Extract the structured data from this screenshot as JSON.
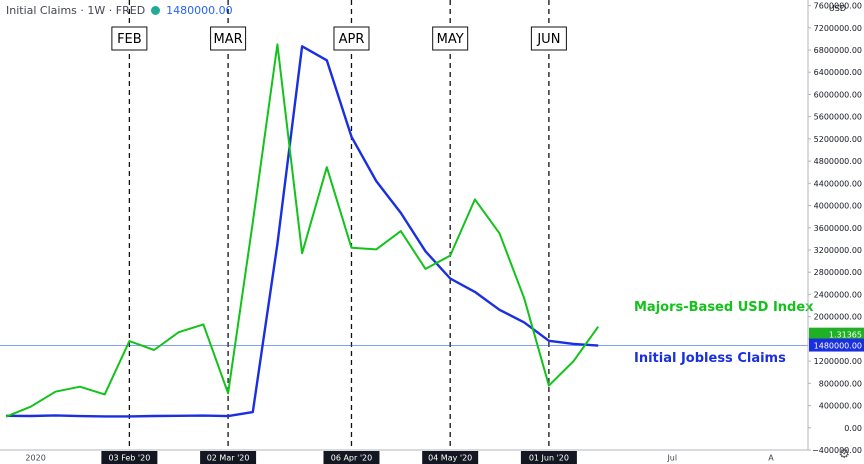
{
  "header": {
    "symbol": "Initial Claims · 1W · FRED",
    "value": "1480000.00"
  },
  "colors": {
    "claims": "#1a2fe0",
    "usd": "#13c21a",
    "current_line": "#2962ff",
    "usd_badge": "#1fb025",
    "claims_badge": "#1a2fe0"
  },
  "chart_data": {
    "type": "line",
    "title": "",
    "x_unit": "weeks",
    "y_axis": {
      "unit": "USD",
      "ylim": [
        -400000,
        7700000
      ],
      "ticks": [
        -400000,
        0,
        400000,
        800000,
        1200000,
        1600000,
        2000000,
        2400000,
        2800000,
        3200000,
        3600000,
        4000000,
        4400000,
        4800000,
        5200000,
        5600000,
        6000000,
        6400000,
        6800000,
        7200000,
        7600000
      ],
      "tick_labels": [
        "−400000.00",
        "0.00",
        "400000.00",
        "800000.00",
        "1200000.00",
        "1600000.00",
        "2000000.00",
        "2400000.00",
        "2800000.00",
        "3200000.00",
        "3600000.00",
        "4000000.00",
        "4400000.00",
        "4800000.00",
        "5200000.00",
        "5600000.00",
        "6000000.00",
        "6400000.00",
        "6800000.00",
        "7200000.00",
        "7600000.00"
      ]
    },
    "x_axis": {
      "xlim": [
        0,
        32.5
      ],
      "labels": [
        {
          "x": 1.2,
          "text": "2020",
          "boxed": false
        },
        {
          "x": 5.0,
          "text": "03 Feb '20",
          "boxed": true
        },
        {
          "x": 9.0,
          "text": "02 Mar '20",
          "boxed": true
        },
        {
          "x": 14.0,
          "text": "06 Apr '20",
          "boxed": true
        },
        {
          "x": 18.0,
          "text": "04 May '20",
          "boxed": true
        },
        {
          "x": 22.0,
          "text": "01 Jun '20",
          "boxed": true
        },
        {
          "x": 27.0,
          "text": "Jul",
          "boxed": false
        },
        {
          "x": 31.0,
          "text": "A",
          "boxed": false
        }
      ]
    },
    "month_markers": [
      {
        "x": 5.0,
        "label": "FEB"
      },
      {
        "x": 9.0,
        "label": "MAR"
      },
      {
        "x": 14.0,
        "label": "APR"
      },
      {
        "x": 18.0,
        "label": "MAY"
      },
      {
        "x": 22.0,
        "label": "JUN"
      }
    ],
    "current_value_line": 1480000,
    "series": [
      {
        "name": "Initial Jobless Claims",
        "color": "#1a2fe0",
        "x": [
          0,
          1,
          2,
          3,
          4,
          5,
          6,
          7,
          8,
          9,
          10,
          11,
          12,
          13,
          14,
          15,
          16,
          17,
          18,
          19,
          20,
          21,
          22,
          23,
          24
        ],
        "y": [
          215000,
          212000,
          223000,
          211000,
          204000,
          205000,
          212000,
          215000,
          219000,
          211000,
          282000,
          3307000,
          6867000,
          6615000,
          5237000,
          4442000,
          3867000,
          3176000,
          2687000,
          2446000,
          2123000,
          1897000,
          1566000,
          1509000,
          1480000
        ],
        "badge": "1480000.00"
      },
      {
        "name": "Majors-Based USD Index",
        "color": "#13c21a",
        "badge": "1.31365",
        "x": [
          0,
          1,
          2,
          3,
          4,
          5,
          6,
          7,
          8,
          9,
          10,
          11,
          12,
          13,
          14,
          15,
          16,
          17,
          18,
          19,
          20,
          21,
          22,
          23,
          24
        ],
        "y": [
          200000,
          380000,
          650000,
          740000,
          600000,
          1560000,
          1400000,
          1720000,
          1860000,
          620000,
          3700000,
          6900000,
          3140000,
          4690000,
          3240000,
          3210000,
          3540000,
          2860000,
          3100000,
          4110000,
          3500000,
          2330000,
          760000,
          1200000,
          1820000
        ]
      }
    ],
    "annotations": [
      {
        "text": "Majors-Based USD Index",
        "series": 1
      },
      {
        "text": "Initial Jobless Claims",
        "series": 0
      }
    ],
    "grid": false
  }
}
